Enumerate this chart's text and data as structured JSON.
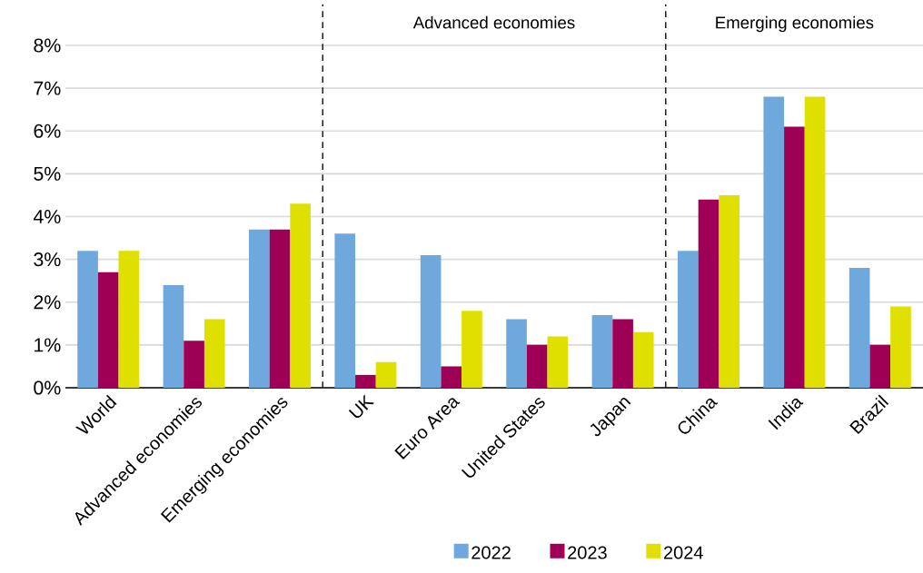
{
  "chart_data": {
    "type": "bar",
    "categories": [
      "World",
      "Advanced economies",
      "Emerging economies",
      "UK",
      "Euro Area",
      "United States",
      "Japan",
      "China",
      "India",
      "Brazil"
    ],
    "series": [
      {
        "name": "2022",
        "color": "#6fa8dc",
        "values": [
          3.2,
          2.4,
          3.7,
          3.6,
          3.1,
          1.6,
          1.7,
          3.2,
          6.8,
          2.8
        ]
      },
      {
        "name": "2023",
        "color": "#9e0055",
        "values": [
          2.7,
          1.1,
          3.7,
          0.3,
          0.5,
          1.0,
          1.6,
          4.4,
          6.1,
          1.0
        ]
      },
      {
        "name": "2024",
        "color": "#dfe000",
        "values": [
          3.2,
          1.6,
          4.3,
          0.6,
          1.8,
          1.2,
          1.3,
          4.5,
          6.8,
          1.9
        ]
      }
    ],
    "ylim": [
      0,
      8
    ],
    "yticks": [
      {
        "value": 0,
        "label": "0%"
      },
      {
        "value": 1,
        "label": "1%"
      },
      {
        "value": 2,
        "label": "2%"
      },
      {
        "value": 3,
        "label": "3%"
      },
      {
        "value": 4,
        "label": "4%"
      },
      {
        "value": 5,
        "label": "5%"
      },
      {
        "value": 6,
        "label": "6%"
      },
      {
        "value": 7,
        "label": "7%"
      },
      {
        "value": 8,
        "label": "8%"
      }
    ],
    "annotations": [
      "Advanced economies",
      "Emerging economies"
    ],
    "grid": "y",
    "legend": "bottom"
  }
}
